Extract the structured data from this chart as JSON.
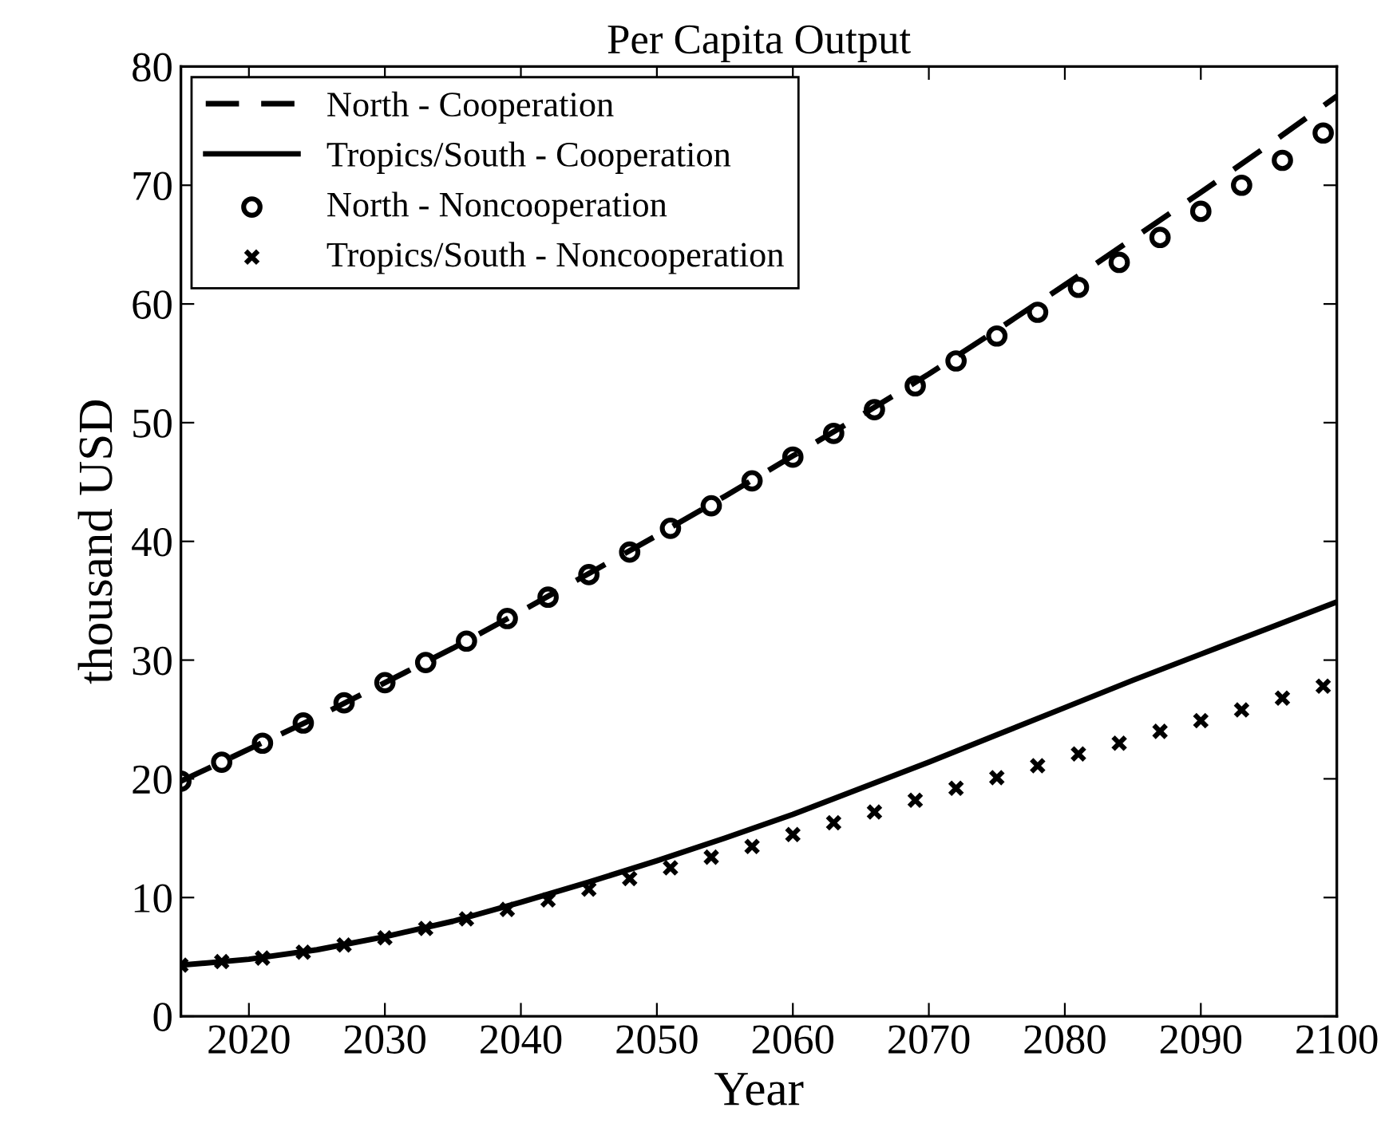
{
  "chart_data": {
    "type": "line",
    "title": "Per Capita Output",
    "xlabel": "Year",
    "ylabel": "thousand USD",
    "xlim": [
      2015,
      2100
    ],
    "xticks": [
      2020,
      2030,
      2040,
      2050,
      2060,
      2070,
      2080,
      2090,
      2100
    ],
    "ylim": [
      0,
      80
    ],
    "yticks": [
      0,
      10,
      20,
      30,
      40,
      50,
      60,
      70,
      80
    ],
    "grid": false,
    "legend": "top left",
    "series": [
      {
        "name": "North - Cooperation",
        "line_style": "dashed",
        "marker": "none",
        "color": "#000000",
        "x": [
          2015,
          2020,
          2025,
          2030,
          2035,
          2040,
          2045,
          2050,
          2055,
          2060,
          2065,
          2070,
          2075,
          2080,
          2085,
          2090,
          2095,
          2100
        ],
        "values": [
          19.8,
          22.5,
          25.2,
          28.1,
          31.0,
          34.1,
          37.3,
          40.5,
          43.8,
          47.2,
          50.6,
          54.1,
          57.8,
          61.6,
          65.5,
          69.4,
          73.4,
          77.5
        ]
      },
      {
        "name": "Tropics/South - Cooperation",
        "line_style": "solid",
        "marker": "none",
        "color": "#000000",
        "x": [
          2015,
          2020,
          2025,
          2030,
          2035,
          2040,
          2045,
          2050,
          2055,
          2060,
          2065,
          2070,
          2075,
          2080,
          2085,
          2090,
          2095,
          2100
        ],
        "values": [
          4.3,
          4.8,
          5.6,
          6.7,
          8.0,
          9.6,
          11.3,
          13.1,
          15.0,
          17.0,
          19.2,
          21.4,
          23.7,
          26.0,
          28.3,
          30.5,
          32.7,
          34.9
        ]
      },
      {
        "name": "North - Noncooperation",
        "type": "scatter",
        "marker": "circle",
        "color": "#000000",
        "x": [
          2015,
          2018,
          2021,
          2024,
          2027,
          2030,
          2033,
          2036,
          2039,
          2042,
          2045,
          2048,
          2051,
          2054,
          2057,
          2060,
          2063,
          2066,
          2069,
          2072,
          2075,
          2078,
          2081,
          2084,
          2087,
          2090,
          2093,
          2096,
          2099
        ],
        "values": [
          19.8,
          21.4,
          23.0,
          24.7,
          26.4,
          28.1,
          29.8,
          31.6,
          33.5,
          35.3,
          37.2,
          39.1,
          41.1,
          43.0,
          45.1,
          47.1,
          49.1,
          51.1,
          53.1,
          55.2,
          57.3,
          59.3,
          61.4,
          63.5,
          65.6,
          67.8,
          70.0,
          72.1,
          74.4
        ]
      },
      {
        "name": "Tropics/South - Noncooperation",
        "type": "scatter",
        "marker": "cross",
        "color": "#000000",
        "x": [
          2015,
          2018,
          2021,
          2024,
          2027,
          2030,
          2033,
          2036,
          2039,
          2042,
          2045,
          2048,
          2051,
          2054,
          2057,
          2060,
          2063,
          2066,
          2069,
          2072,
          2075,
          2078,
          2081,
          2084,
          2087,
          2090,
          2093,
          2096,
          2099
        ],
        "values": [
          4.3,
          4.6,
          4.9,
          5.4,
          6.0,
          6.6,
          7.4,
          8.2,
          9.0,
          9.8,
          10.7,
          11.6,
          12.5,
          13.4,
          14.3,
          15.3,
          16.3,
          17.2,
          18.2,
          19.2,
          20.1,
          21.1,
          22.1,
          23.0,
          24.0,
          24.9,
          25.8,
          26.8,
          27.8
        ]
      }
    ]
  }
}
